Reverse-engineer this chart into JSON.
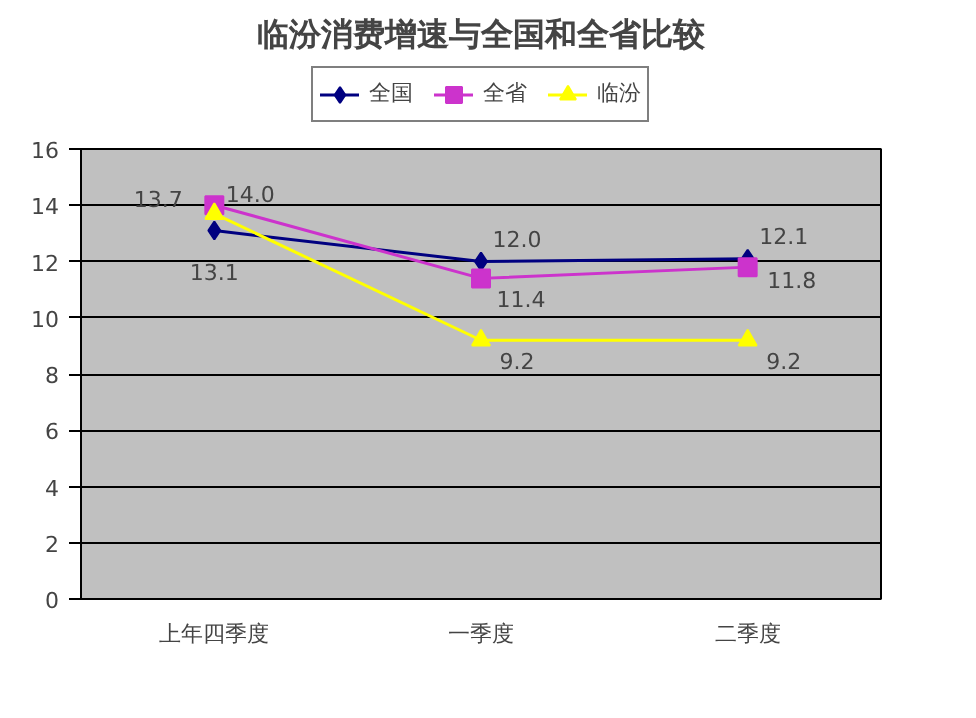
{
  "chart_data": {
    "type": "line",
    "title": "临汾消费增速与全国和全省比较",
    "categories": [
      "上年四季度",
      "一季度",
      "二季度"
    ],
    "series": [
      {
        "name": "全国",
        "color": "#000080",
        "values": [
          13.1,
          12.0,
          12.1
        ],
        "value_labels": [
          "13.1",
          "12.0",
          "12.1"
        ],
        "marker": "diamond"
      },
      {
        "name": "全省",
        "color": "#cc33cc",
        "values": [
          14.0,
          11.4,
          11.8
        ],
        "value_labels": [
          "14.0",
          "11.4",
          "11.8"
        ],
        "marker": "square"
      },
      {
        "name": "临汾",
        "color": "#ffff00",
        "values": [
          13.7,
          9.2,
          9.2
        ],
        "value_labels": [
          "13.7",
          "9.2",
          "9.2"
        ],
        "marker": "triangle"
      }
    ],
    "ylim": [
      0,
      16
    ],
    "yticks": [
      0,
      2,
      4,
      6,
      8,
      10,
      12,
      14,
      16
    ],
    "grid": "y",
    "legend": "top"
  }
}
